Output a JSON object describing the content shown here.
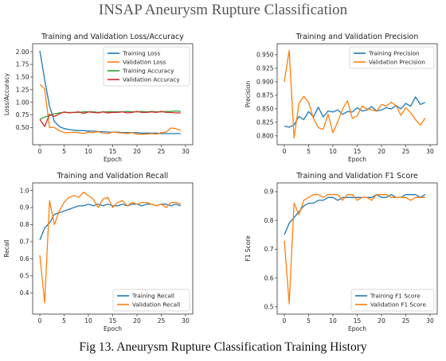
{
  "page": {
    "title": "INSAP Aneurysm Rupture Classification",
    "caption": "Fig 13. Aneurysm Rupture Classification Training History"
  },
  "colors": {
    "blue": "#1f77b4",
    "orange": "#ff7f0e",
    "green": "#2ca02c",
    "red": "#d62728"
  },
  "chart_data": [
    {
      "type": "line",
      "title": "Training and Validation Loss/Accuracy",
      "xlabel": "Epoch",
      "ylabel": "Loss/Accuracy",
      "xlim": [
        0,
        29
      ],
      "ylim": [
        0.25,
        2.07
      ],
      "xticks": [
        0,
        5,
        10,
        15,
        20,
        25,
        30
      ],
      "yticks": [
        0.5,
        0.75,
        1.0,
        1.25,
        1.5,
        1.75,
        2.0
      ],
      "ytick_labels": [
        "0.50",
        "0.75",
        "1.00",
        "1.25",
        "1.50",
        "1.75",
        "2.00"
      ],
      "legend": "top-right",
      "grid": false,
      "x": [
        0,
        1,
        2,
        3,
        4,
        5,
        6,
        7,
        8,
        9,
        10,
        11,
        12,
        13,
        14,
        15,
        16,
        17,
        18,
        19,
        20,
        21,
        22,
        23,
        24,
        25,
        26,
        27,
        28,
        29
      ],
      "series": [
        {
          "name": "Training Loss",
          "color": "#1f77b4",
          "values": [
            2.02,
            1.45,
            0.92,
            0.62,
            0.52,
            0.48,
            0.46,
            0.45,
            0.44,
            0.44,
            0.43,
            0.43,
            0.42,
            0.42,
            0.41,
            0.41,
            0.41,
            0.4,
            0.4,
            0.4,
            0.4,
            0.39,
            0.39,
            0.39,
            0.39,
            0.38,
            0.38,
            0.38,
            0.38,
            0.38
          ]
        },
        {
          "name": "Validation Loss",
          "color": "#ff7f0e",
          "values": [
            1.36,
            1.26,
            0.5,
            0.5,
            0.44,
            0.4,
            0.4,
            0.41,
            0.4,
            0.38,
            0.41,
            0.4,
            0.42,
            0.39,
            0.38,
            0.41,
            0.4,
            0.39,
            0.38,
            0.4,
            0.37,
            0.37,
            0.37,
            0.38,
            0.37,
            0.4,
            0.41,
            0.49,
            0.48,
            0.44
          ]
        },
        {
          "name": "Training Accuracy",
          "color": "#2ca02c",
          "values": [
            0.66,
            0.71,
            0.74,
            0.77,
            0.79,
            0.8,
            0.8,
            0.8,
            0.8,
            0.81,
            0.81,
            0.81,
            0.8,
            0.81,
            0.81,
            0.81,
            0.81,
            0.81,
            0.82,
            0.81,
            0.81,
            0.82,
            0.81,
            0.82,
            0.81,
            0.81,
            0.82,
            0.82,
            0.83,
            0.82
          ]
        },
        {
          "name": "Validation Accuracy",
          "color": "#d62728",
          "values": [
            0.66,
            0.52,
            0.76,
            0.72,
            0.77,
            0.81,
            0.79,
            0.8,
            0.81,
            0.78,
            0.81,
            0.8,
            0.79,
            0.81,
            0.79,
            0.8,
            0.8,
            0.81,
            0.79,
            0.8,
            0.82,
            0.8,
            0.8,
            0.81,
            0.8,
            0.82,
            0.8,
            0.8,
            0.79,
            0.79
          ]
        }
      ]
    },
    {
      "type": "line",
      "title": "Training and Validation Precision",
      "xlabel": "Epoch",
      "ylabel": "Precision",
      "xlim": [
        0,
        29
      ],
      "ylim": [
        0.792,
        0.962
      ],
      "xticks": [
        0,
        5,
        10,
        15,
        20,
        25,
        30
      ],
      "yticks": [
        0.8,
        0.825,
        0.85,
        0.875,
        0.9,
        0.925,
        0.95
      ],
      "ytick_labels": [
        "0.800",
        "0.825",
        "0.850",
        "0.875",
        "0.900",
        "0.925",
        "0.950"
      ],
      "legend": "top-right",
      "grid": false,
      "x": [
        0,
        1,
        2,
        3,
        4,
        5,
        6,
        7,
        8,
        9,
        10,
        11,
        12,
        13,
        14,
        15,
        16,
        17,
        18,
        19,
        20,
        21,
        22,
        23,
        24,
        25,
        26,
        27,
        28,
        29
      ],
      "series": [
        {
          "name": "Training Precision",
          "color": "#1f77b4",
          "values": [
            0.818,
            0.816,
            0.82,
            0.836,
            0.83,
            0.845,
            0.835,
            0.853,
            0.835,
            0.846,
            0.844,
            0.848,
            0.84,
            0.845,
            0.844,
            0.852,
            0.846,
            0.848,
            0.854,
            0.846,
            0.848,
            0.852,
            0.85,
            0.856,
            0.85,
            0.86,
            0.855,
            0.872,
            0.858,
            0.862
          ]
        },
        {
          "name": "Validation Precision",
          "color": "#ff7f0e",
          "values": [
            0.9,
            0.958,
            0.796,
            0.86,
            0.873,
            0.862,
            0.832,
            0.815,
            0.812,
            0.84,
            0.806,
            0.826,
            0.85,
            0.865,
            0.832,
            0.837,
            0.855,
            0.85,
            0.848,
            0.846,
            0.858,
            0.855,
            0.862,
            0.856,
            0.838,
            0.852,
            0.843,
            0.83,
            0.82,
            0.833
          ]
        }
      ]
    },
    {
      "type": "line",
      "title": "Training and Validation Recall",
      "xlabel": "Epoch",
      "ylabel": "Recall",
      "xlim": [
        0,
        29
      ],
      "ylim": [
        0.31,
        1.01
      ],
      "xticks": [
        0,
        5,
        10,
        15,
        20,
        25,
        30
      ],
      "yticks": [
        0.4,
        0.5,
        0.6,
        0.7,
        0.8,
        0.9,
        1.0
      ],
      "ytick_labels": [
        "0.4",
        "0.5",
        "0.6",
        "0.7",
        "0.8",
        "0.9",
        "1.0"
      ],
      "legend": "bottom-right",
      "grid": false,
      "x": [
        0,
        1,
        2,
        3,
        4,
        5,
        6,
        7,
        8,
        9,
        10,
        11,
        12,
        13,
        14,
        15,
        16,
        17,
        18,
        19,
        20,
        21,
        22,
        23,
        24,
        25,
        26,
        27,
        28,
        29
      ],
      "series": [
        {
          "name": "Training Recall",
          "color": "#1f77b4",
          "values": [
            0.71,
            0.78,
            0.81,
            0.86,
            0.87,
            0.88,
            0.89,
            0.9,
            0.91,
            0.91,
            0.92,
            0.91,
            0.92,
            0.91,
            0.92,
            0.91,
            0.91,
            0.92,
            0.91,
            0.92,
            0.92,
            0.91,
            0.92,
            0.92,
            0.91,
            0.92,
            0.92,
            0.91,
            0.92,
            0.91
          ]
        },
        {
          "name": "Validation Recall",
          "color": "#ff7f0e",
          "values": [
            0.62,
            0.34,
            0.94,
            0.8,
            0.88,
            0.93,
            0.96,
            0.97,
            0.96,
            0.99,
            0.97,
            0.95,
            0.9,
            0.95,
            0.96,
            0.9,
            0.93,
            0.94,
            0.91,
            0.93,
            0.92,
            0.93,
            0.93,
            0.92,
            0.91,
            0.92,
            0.9,
            0.93,
            0.93,
            0.92
          ]
        }
      ]
    },
    {
      "type": "line",
      "title": "Training and Validation F1 Score",
      "xlabel": "Epoch",
      "ylabel": "F1 Score",
      "xlim": [
        0,
        29
      ],
      "ylim": [
        0.495,
        0.91
      ],
      "xticks": [
        0,
        5,
        10,
        15,
        20,
        25,
        30
      ],
      "yticks": [
        0.5,
        0.6,
        0.7,
        0.8,
        0.9
      ],
      "ytick_labels": [
        "0.5",
        "0.6",
        "0.7",
        "0.8",
        "0.9"
      ],
      "legend": "bottom-right",
      "grid": false,
      "x": [
        0,
        1,
        2,
        3,
        4,
        5,
        6,
        7,
        8,
        9,
        10,
        11,
        12,
        13,
        14,
        15,
        16,
        17,
        18,
        19,
        20,
        21,
        22,
        23,
        24,
        25,
        26,
        27,
        28,
        29
      ],
      "series": [
        {
          "name": "Training F1 Score",
          "color": "#1f77b4",
          "values": [
            0.75,
            0.79,
            0.81,
            0.83,
            0.85,
            0.86,
            0.86,
            0.87,
            0.87,
            0.88,
            0.88,
            0.87,
            0.88,
            0.88,
            0.88,
            0.88,
            0.88,
            0.88,
            0.88,
            0.89,
            0.88,
            0.88,
            0.89,
            0.88,
            0.88,
            0.89,
            0.89,
            0.89,
            0.88,
            0.89
          ]
        },
        {
          "name": "Validation F1 Score",
          "color": "#ff7f0e",
          "values": [
            0.73,
            0.51,
            0.86,
            0.82,
            0.87,
            0.88,
            0.89,
            0.89,
            0.88,
            0.89,
            0.89,
            0.89,
            0.87,
            0.89,
            0.89,
            0.87,
            0.88,
            0.88,
            0.87,
            0.89,
            0.89,
            0.89,
            0.88,
            0.88,
            0.88,
            0.88,
            0.87,
            0.88,
            0.88,
            0.88
          ]
        }
      ]
    }
  ]
}
